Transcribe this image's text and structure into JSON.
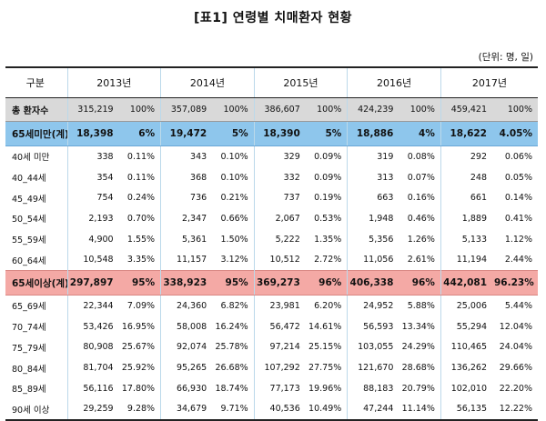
{
  "title": "[표1] 연령별 치매환자 현황",
  "unit": "(단위: 명, 일)",
  "header": {
    "category": "구분",
    "years": [
      "2013년",
      "2014년",
      "2015년",
      "2016년",
      "2017년"
    ]
  },
  "rows": [
    {
      "type": "total",
      "label": "총 환자수",
      "cells": [
        [
          "315,219",
          "100%"
        ],
        [
          "357,089",
          "100%"
        ],
        [
          "386,607",
          "100%"
        ],
        [
          "424,239",
          "100%"
        ],
        [
          "459,421",
          "100%"
        ]
      ]
    },
    {
      "type": "blue",
      "label": "65세미만(계)",
      "cells": [
        [
          "18,398",
          "6%"
        ],
        [
          "19,472",
          "5%"
        ],
        [
          "18,390",
          "5%"
        ],
        [
          "18,886",
          "4%"
        ],
        [
          "18,622",
          "4.05%"
        ]
      ]
    },
    {
      "type": "normal",
      "label": "40세 미만",
      "cells": [
        [
          "338",
          "0.11%"
        ],
        [
          "343",
          "0.10%"
        ],
        [
          "329",
          "0.09%"
        ],
        [
          "319",
          "0.08%"
        ],
        [
          "292",
          "0.06%"
        ]
      ]
    },
    {
      "type": "normal",
      "label": "40_44세",
      "cells": [
        [
          "354",
          "0.11%"
        ],
        [
          "368",
          "0.10%"
        ],
        [
          "332",
          "0.09%"
        ],
        [
          "313",
          "0.07%"
        ],
        [
          "248",
          "0.05%"
        ]
      ]
    },
    {
      "type": "normal",
      "label": "45_49세",
      "cells": [
        [
          "754",
          "0.24%"
        ],
        [
          "736",
          "0.21%"
        ],
        [
          "737",
          "0.19%"
        ],
        [
          "663",
          "0.16%"
        ],
        [
          "661",
          "0.14%"
        ]
      ]
    },
    {
      "type": "normal",
      "label": "50_54세",
      "cells": [
        [
          "2,193",
          "0.70%"
        ],
        [
          "2,347",
          "0.66%"
        ],
        [
          "2,067",
          "0.53%"
        ],
        [
          "1,948",
          "0.46%"
        ],
        [
          "1,889",
          "0.41%"
        ]
      ]
    },
    {
      "type": "normal",
      "label": "55_59세",
      "cells": [
        [
          "4,900",
          "1.55%"
        ],
        [
          "5,361",
          "1.50%"
        ],
        [
          "5,222",
          "1.35%"
        ],
        [
          "5,356",
          "1.26%"
        ],
        [
          "5,133",
          "1.12%"
        ]
      ]
    },
    {
      "type": "normal",
      "label": "60_64세",
      "cells": [
        [
          "10,548",
          "3.35%"
        ],
        [
          "11,157",
          "3.12%"
        ],
        [
          "10,512",
          "2.72%"
        ],
        [
          "11,056",
          "2.61%"
        ],
        [
          "11,194",
          "2.44%"
        ]
      ]
    },
    {
      "type": "pink",
      "label": "65세이상(계)",
      "cells": [
        [
          "297,897",
          "95%"
        ],
        [
          "338,923",
          "95%"
        ],
        [
          "369,273",
          "96%"
        ],
        [
          "406,338",
          "96%"
        ],
        [
          "442,081",
          "96.23%"
        ]
      ]
    },
    {
      "type": "normal",
      "label": "65_69세",
      "cells": [
        [
          "22,344",
          "7.09%"
        ],
        [
          "24,360",
          "6.82%"
        ],
        [
          "23,981",
          "6.20%"
        ],
        [
          "24,952",
          "5.88%"
        ],
        [
          "25,006",
          "5.44%"
        ]
      ]
    },
    {
      "type": "normal",
      "label": "70_74세",
      "cells": [
        [
          "53,426",
          "16.95%"
        ],
        [
          "58,008",
          "16.24%"
        ],
        [
          "56,472",
          "14.61%"
        ],
        [
          "56,593",
          "13.34%"
        ],
        [
          "55,294",
          "12.04%"
        ]
      ]
    },
    {
      "type": "normal",
      "label": "75_79세",
      "cells": [
        [
          "80,908",
          "25.67%"
        ],
        [
          "92,074",
          "25.78%"
        ],
        [
          "97,214",
          "25.15%"
        ],
        [
          "103,055",
          "24.29%"
        ],
        [
          "110,465",
          "24.04%"
        ]
      ]
    },
    {
      "type": "normal",
      "label": "80_84세",
      "cells": [
        [
          "81,704",
          "25.92%"
        ],
        [
          "95,265",
          "26.68%"
        ],
        [
          "107,292",
          "27.75%"
        ],
        [
          "121,670",
          "28.68%"
        ],
        [
          "136,262",
          "29.66%"
        ]
      ]
    },
    {
      "type": "normal",
      "label": "85_89세",
      "cells": [
        [
          "56,116",
          "17.80%"
        ],
        [
          "66,930",
          "18.74%"
        ],
        [
          "77,173",
          "19.96%"
        ],
        [
          "88,183",
          "20.79%"
        ],
        [
          "102,010",
          "22.20%"
        ]
      ]
    },
    {
      "type": "normal",
      "label": "90세 이상",
      "cells": [
        [
          "29,259",
          "9.28%"
        ],
        [
          "34,679",
          "9.71%"
        ],
        [
          "40,536",
          "10.49%"
        ],
        [
          "47,244",
          "11.14%"
        ],
        [
          "56,135",
          "12.22%"
        ]
      ]
    }
  ]
}
